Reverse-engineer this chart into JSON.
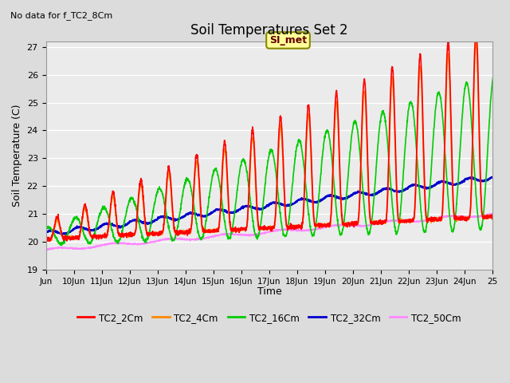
{
  "title": "Soil Temperatures Set 2",
  "subtitle": "No data for f_TC2_8Cm",
  "xlabel": "Time",
  "ylabel": "Soil Temperature (C)",
  "ylim": [
    19.0,
    27.2
  ],
  "yticks": [
    19.0,
    20.0,
    21.0,
    22.0,
    23.0,
    24.0,
    25.0,
    26.0,
    27.0
  ],
  "xtick_labels": [
    "Jun",
    "10Jun",
    "11Jun",
    "12Jun",
    "13Jun",
    "14Jun",
    "15Jun",
    "16Jun",
    "17Jun",
    "18Jun",
    "19Jun",
    "20Jun",
    "21Jun",
    "22Jun",
    "23Jun",
    "24Jun",
    "25"
  ],
  "series": {
    "TC2_2Cm": {
      "color": "#ff0000",
      "lw": 1.2
    },
    "TC2_4Cm": {
      "color": "#ff8800",
      "lw": 1.2
    },
    "TC2_16Cm": {
      "color": "#00cc00",
      "lw": 1.2
    },
    "TC2_32Cm": {
      "color": "#0000cc",
      "lw": 1.5
    },
    "TC2_50Cm": {
      "color": "#ff88ff",
      "lw": 1.2
    }
  },
  "annotation_box": {
    "text": "SI_met",
    "facecolor": "#ffff99",
    "edgecolor": "#888800"
  },
  "bg_color": "#dcdcdc",
  "plot_bg": "#ebebeb",
  "fig_width": 6.4,
  "fig_height": 4.8,
  "dpi": 100
}
